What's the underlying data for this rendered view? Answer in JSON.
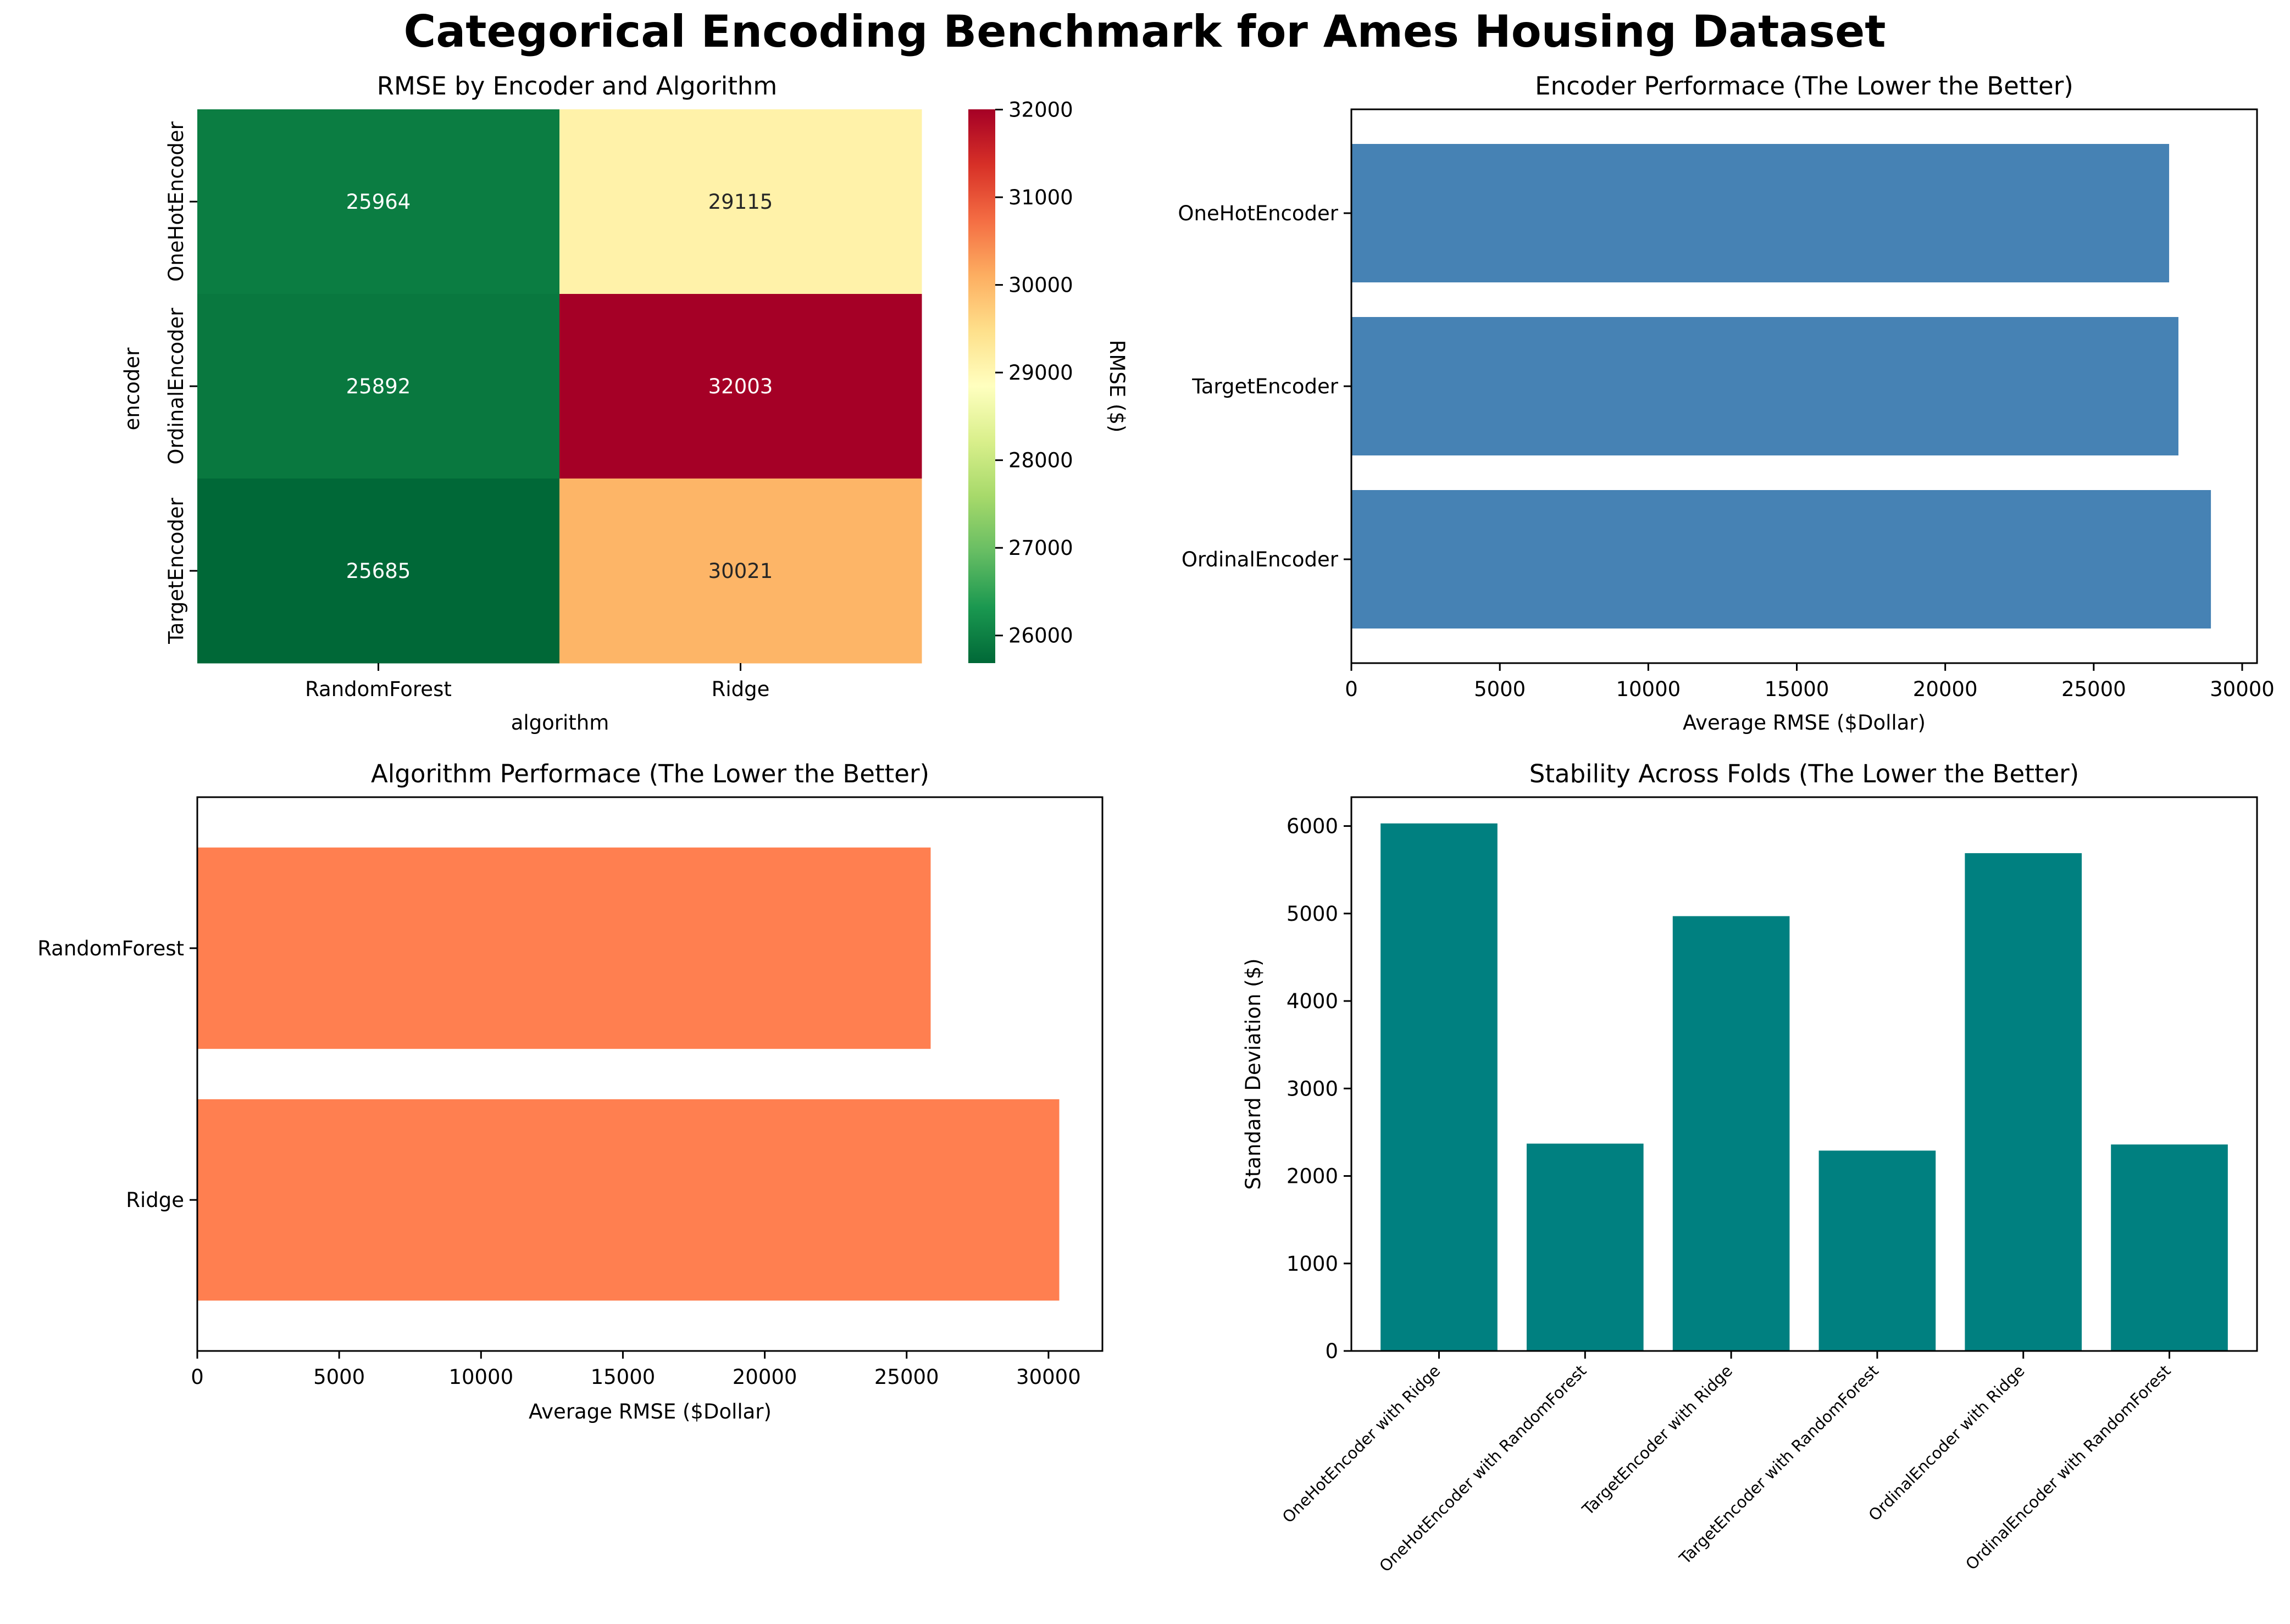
{
  "figure": {
    "title": "Categorical Encoding Benchmark for Ames Housing Dataset"
  },
  "chart_data": [
    {
      "type": "heatmap",
      "title": "RMSE by Encoder and Algorithm",
      "xlabel": "algorithm",
      "ylabel": "encoder",
      "x_categories": [
        "RandomForest",
        "Ridge"
      ],
      "y_categories": [
        "OneHotEncoder",
        "OrdinalEncoder",
        "TargetEncoder"
      ],
      "values": [
        [
          25964,
          29115
        ],
        [
          25892,
          32003
        ],
        [
          25685,
          30021
        ]
      ],
      "colorbar": {
        "label": "RMSE ($)",
        "range": [
          25685,
          32003
        ],
        "ticks": [
          26000,
          27000,
          28000,
          29000,
          30000,
          31000,
          32000
        ],
        "colormap": "RdYlGn_r"
      }
    },
    {
      "type": "bar",
      "orientation": "horizontal",
      "title": "Encoder Performace (The Lower the Better)",
      "xlabel": "Average RMSE ($Dollar)",
      "ylabel": "",
      "categories": [
        "OneHotEncoder",
        "TargetEncoder",
        "OrdinalEncoder"
      ],
      "values": [
        27540,
        27853,
        28947
      ],
      "xlim": [
        0,
        30500
      ],
      "xticks": [
        0,
        5000,
        10000,
        15000,
        20000,
        25000,
        30000
      ],
      "color": "#4682b4"
    },
    {
      "type": "bar",
      "orientation": "horizontal",
      "title": "Algorithm Performace (The Lower the Better)",
      "xlabel": "Average RMSE ($Dollar)",
      "ylabel": "",
      "categories": [
        "RandomForest",
        "Ridge"
      ],
      "values": [
        25847,
        30380
      ],
      "xlim": [
        0,
        31900
      ],
      "xticks": [
        0,
        5000,
        10000,
        15000,
        20000,
        25000,
        30000
      ],
      "color": "#ff7f50"
    },
    {
      "type": "bar",
      "title": "Stability Across Folds (The Lower the Better)",
      "xlabel": "",
      "ylabel": "Standard Deviation ($)",
      "categories": [
        "OneHotEncoder with Ridge",
        "OneHotEncoder with RandomForest",
        "TargetEncoder with Ridge",
        "TargetEncoder with RandomForest",
        "OrdinalEncoder with Ridge",
        "OrdinalEncoder with RandomForest"
      ],
      "values": [
        6030,
        2370,
        4970,
        2290,
        5690,
        2360
      ],
      "ylim": [
        0,
        6330
      ],
      "yticks": [
        0,
        1000,
        2000,
        3000,
        4000,
        5000,
        6000
      ],
      "color": "#008080"
    }
  ]
}
